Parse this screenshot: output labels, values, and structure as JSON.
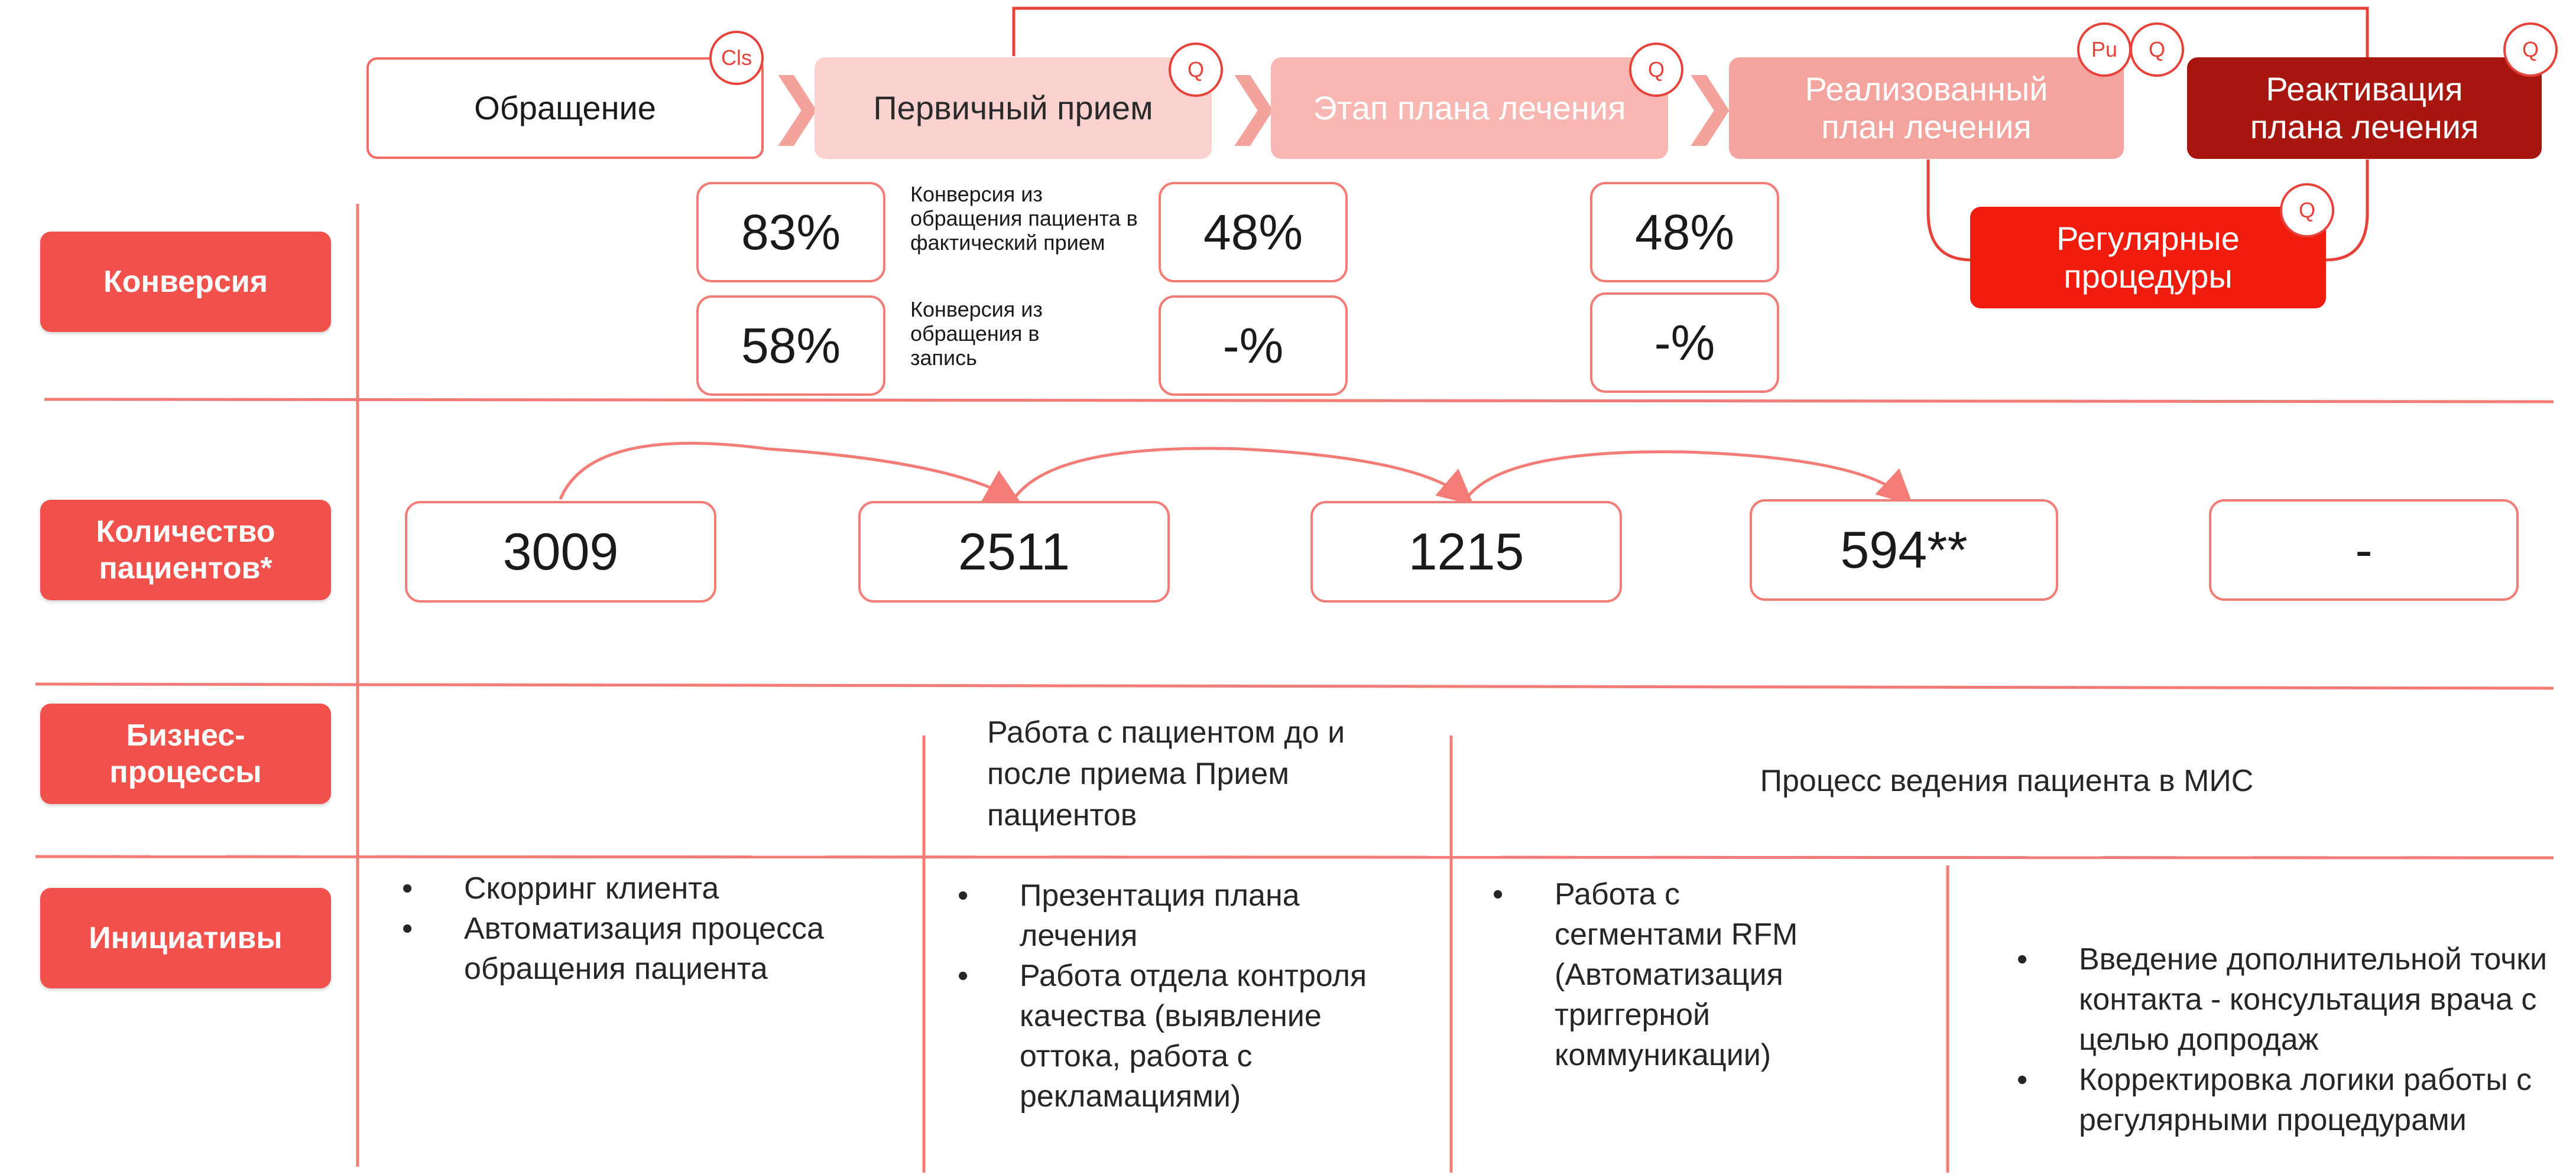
{
  "stages": [
    {
      "label": "Обращение",
      "badges": [
        "Cls"
      ]
    },
    {
      "label": "Первичный прием",
      "badges": [
        "Q"
      ]
    },
    {
      "label": "Этап плана лечения",
      "badges": [
        "Q"
      ]
    },
    {
      "label": "Реализованный план лечения",
      "badges": [
        "Pu",
        "Q"
      ]
    },
    {
      "label": "Реактивация плана лечения",
      "badges": [
        "Q"
      ]
    },
    {
      "label": "Регулярные процедуры",
      "badges": [
        "Q"
      ]
    }
  ],
  "rows": {
    "conversion": {
      "label": "Конверсия",
      "notes": [
        "Конверсия из обращения пациента в фактический прием",
        "Конверсия из обращения в запись"
      ],
      "values": [
        [
          "83%",
          "58%"
        ],
        [
          "48%",
          "-%"
        ],
        [
          "48%",
          "-%"
        ]
      ]
    },
    "patients": {
      "label": "Количество пациентов*",
      "values": [
        "3009",
        "2511",
        "1215",
        "594**",
        "-"
      ]
    },
    "business": {
      "label": "Бизнес-процессы",
      "items": [
        "Работа с пациентом до и после приема Прием пациентов",
        "Процесс ведения пациента в МИС"
      ]
    },
    "initiatives": {
      "label": "Инициативы",
      "columns": [
        [
          "Скорринг клиента",
          "Автоматизация процесса обращения пациента"
        ],
        [
          "Презентация плана лечения",
          "Работа отдела контроля качества (выявление оттока, работа с рекламациями)"
        ],
        [
          "Работа с сегментами RFM (Автоматизация триггерной коммуникации)"
        ],
        [
          "Введение дополнительной точки контакта - консультация врача с целью допродаж",
          "Корректировка логики работы с регулярными процедурами"
        ]
      ]
    }
  },
  "colors": {
    "accent": "#f0524b",
    "line": "#f37c76",
    "dark": "#a8170f",
    "bright": "#f01c0e"
  }
}
